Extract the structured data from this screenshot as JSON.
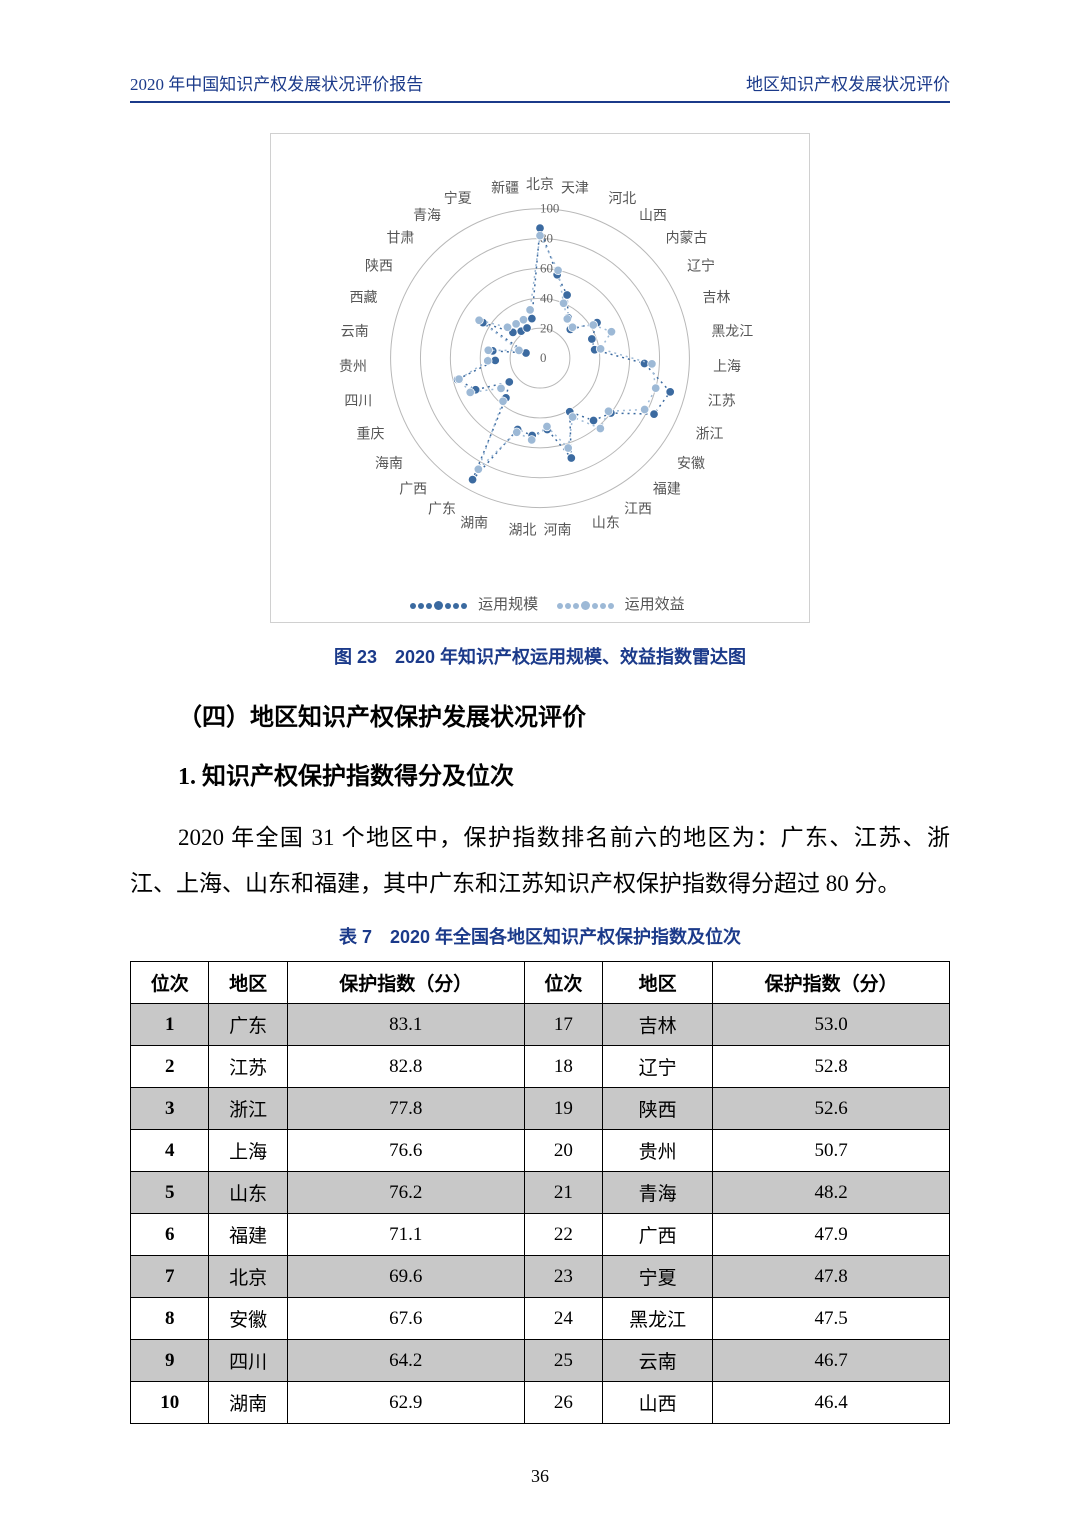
{
  "header": {
    "left": "2020 年中国知识产权发展状况评价报告",
    "right": "地区知识产权发展状况评价"
  },
  "radar_chart": {
    "type": "radar",
    "rmax": 100,
    "rtick_step": 20,
    "rtick_labels": [
      "0",
      "20",
      "40",
      "60",
      "80",
      "100"
    ],
    "grid_color": "#b8b8b8",
    "background_color": "#ffffff",
    "label_fontsize": 14,
    "tick_fontsize": 13,
    "categories": [
      "北京",
      "天津",
      "河北",
      "山西",
      "内蒙古",
      "辽宁",
      "吉林",
      "黑龙江",
      "上海",
      "江苏",
      "浙江",
      "安徽",
      "福建",
      "江西",
      "山东",
      "河南",
      "湖北",
      "湖南",
      "广东",
      "广西",
      "海南",
      "重庆",
      "四川",
      "贵州",
      "云南",
      "西藏",
      "陕西",
      "甘肃",
      "青海",
      "宁夏",
      "新疆"
    ],
    "series": [
      {
        "name": "运用规模",
        "color": "#3b6aa0",
        "marker_size": 6,
        "line_width": 1.5,
        "dash": "dotted",
        "values": [
          87,
          57,
          46,
          33,
          28,
          45,
          37,
          37,
          70,
          90,
          85,
          60,
          55,
          41,
          70,
          48,
          52,
          50,
          93,
          35,
          26,
          48,
          57,
          30,
          32,
          10,
          45,
          25,
          22,
          22,
          27
        ]
      },
      {
        "name": "运用效益",
        "color": "#9db9d6",
        "marker_size": 6,
        "line_width": 1.5,
        "dash": "dotted",
        "values": [
          82,
          60,
          40,
          32,
          30,
          42,
          51,
          41,
          75,
          80,
          78,
          58,
          62,
          45,
          63,
          46,
          55,
          52,
          85,
          38,
          33,
          52,
          56,
          35,
          35,
          15,
          48,
          30,
          28,
          28,
          33
        ]
      }
    ],
    "legend": {
      "position": "bottom-center",
      "items": [
        "运用规模",
        "运用效益"
      ]
    }
  },
  "figure_caption": "图 23　2020 年知识产权运用规模、效益指数雷达图",
  "section_heading": "（四）地区知识产权保护发展状况评价",
  "sub_heading": "1. 知识产权保护指数得分及位次",
  "paragraph": "2020 年全国 31 个地区中，保护指数排名前六的地区为：广东、江苏、浙江、上海、山东和福建，其中广东和江苏知识产权保护指数得分超过 80 分。",
  "table_caption": "表 7　2020 年全国各地区知识产权保护指数及位次",
  "table": {
    "columns": [
      "位次",
      "地区",
      "保护指数（分）",
      "位次",
      "地区",
      "保护指数（分）"
    ],
    "rows": [
      [
        "1",
        "广东",
        "83.1",
        "17",
        "吉林",
        "53.0"
      ],
      [
        "2",
        "江苏",
        "82.8",
        "18",
        "辽宁",
        "52.8"
      ],
      [
        "3",
        "浙江",
        "77.8",
        "19",
        "陕西",
        "52.6"
      ],
      [
        "4",
        "上海",
        "76.6",
        "20",
        "贵州",
        "50.7"
      ],
      [
        "5",
        "山东",
        "76.2",
        "21",
        "青海",
        "48.2"
      ],
      [
        "6",
        "福建",
        "71.1",
        "22",
        "广西",
        "47.9"
      ],
      [
        "7",
        "北京",
        "69.6",
        "23",
        "宁夏",
        "47.8"
      ],
      [
        "8",
        "安徽",
        "67.6",
        "24",
        "黑龙江",
        "47.5"
      ],
      [
        "9",
        "四川",
        "64.2",
        "25",
        "云南",
        "46.7"
      ],
      [
        "10",
        "湖南",
        "62.9",
        "26",
        "山西",
        "46.4"
      ]
    ],
    "odd_row_bg": "#c8c8c8",
    "border_color": "#000000",
    "font_size": 19
  },
  "page_number": "36"
}
